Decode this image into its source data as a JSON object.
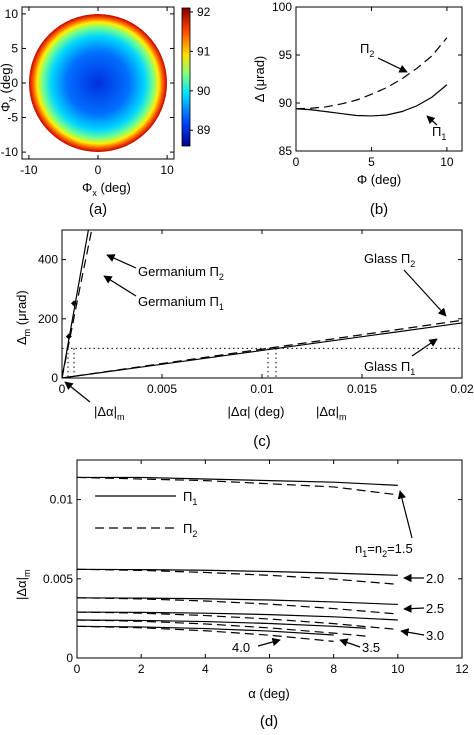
{
  "chart_data": [
    {
      "id": "a",
      "type": "heatmap",
      "panel_label": "(a)",
      "xlabel": "Φ_x (deg)",
      "ylabel": "Φ_y (deg)",
      "xticks": [
        -10,
        0,
        10
      ],
      "yticks": [
        -10,
        -5,
        0,
        5,
        10
      ],
      "xlim": [
        -11,
        11
      ],
      "ylim": [
        -11,
        11
      ],
      "disk_radius": 10,
      "colorbar": {
        "min": 88.6,
        "max": 92.1,
        "ticks": [
          89,
          90,
          91,
          92
        ],
        "stops": [
          "#00008f",
          "#0040ff",
          "#00e0ff",
          "#80ff80",
          "#ffe000",
          "#ff4000",
          "#800000"
        ]
      },
      "center_value": 89.4,
      "edge_value": 92.0
    },
    {
      "id": "b",
      "type": "line",
      "panel_label": "(b)",
      "xlabel": "Φ (deg)",
      "ylabel": "Δ (μrad)",
      "xlim": [
        0,
        11
      ],
      "ylim": [
        85,
        100
      ],
      "xticks": [
        0,
        5,
        10
      ],
      "yticks": [
        85,
        90,
        95,
        100
      ],
      "series": [
        {
          "name": "Π_2",
          "style": "dashed",
          "x": [
            0,
            1,
            2,
            3,
            4,
            5,
            6,
            7,
            8,
            9,
            10
          ],
          "y": [
            89.4,
            89.45,
            89.6,
            89.9,
            90.3,
            90.9,
            91.6,
            92.5,
            93.6,
            94.9,
            96.8
          ]
        },
        {
          "name": "Π_1",
          "style": "solid",
          "x": [
            0,
            1,
            2,
            3,
            4,
            5,
            6,
            7,
            8,
            9,
            10
          ],
          "y": [
            89.4,
            89.3,
            89.1,
            88.9,
            88.7,
            88.65,
            88.75,
            89.1,
            89.7,
            90.6,
            91.9
          ]
        }
      ]
    },
    {
      "id": "c",
      "type": "line",
      "panel_label": "(c)",
      "xlabel": "|Δα| (deg)",
      "ylabel": "Δ_m (μrad)",
      "xlim": [
        0,
        0.02
      ],
      "ylim": [
        0,
        500
      ],
      "xticks": [
        0,
        0.005,
        0.01,
        0.015,
        0.02
      ],
      "yticks": [
        0,
        200,
        400
      ],
      "threshold": 100,
      "series": [
        {
          "name": "Germanium Π_2",
          "style": "dashed",
          "x": [
            0,
            0.0005,
            0.001,
            0.0015
          ],
          "y": [
            0,
            170,
            340,
            505
          ]
        },
        {
          "name": "Germanium Π_1",
          "style": "solid",
          "x": [
            0,
            0.0005,
            0.001,
            0.0014
          ],
          "y": [
            0,
            190,
            380,
            530
          ]
        },
        {
          "name": "Glass Π_2",
          "style": "dashed",
          "x": [
            0,
            0.02
          ],
          "y": [
            0,
            195
          ]
        },
        {
          "name": "Glass Π_1",
          "style": "solid",
          "x": [
            0,
            0.02
          ],
          "y": [
            0,
            186
          ]
        }
      ],
      "markers": [
        {
          "x": 0.00034,
          "y": 140
        },
        {
          "x": 0.0006,
          "y": 252
        }
      ],
      "drop_lines_x": [
        0.0003,
        0.0006,
        0.0103,
        0.0107
      ]
    },
    {
      "id": "d",
      "type": "line",
      "panel_label": "(d)",
      "xlabel": "α (deg)",
      "ylabel": "|Δα|_m",
      "xlim": [
        0,
        12
      ],
      "ylim": [
        0,
        0.0125
      ],
      "xticks": [
        0,
        2,
        4,
        6,
        8,
        10,
        12
      ],
      "yticks": [
        0,
        0.005,
        0.01
      ],
      "legend": {
        "placement": "left",
        "entries": [
          {
            "label": "Π_1",
            "style": "solid"
          },
          {
            "label": "Π_2",
            "style": "dashed"
          }
        ]
      },
      "series": [
        {
          "name": "n1=n2=1.5 Π_1",
          "style": "solid",
          "x": [
            0,
            2,
            4,
            6,
            8,
            10
          ],
          "y": [
            0.0114,
            0.0114,
            0.0113,
            0.0112,
            0.0111,
            0.0109
          ]
        },
        {
          "name": "n1=n2=1.5 Π_2",
          "style": "dashed",
          "x": [
            0,
            2,
            4,
            6,
            8,
            10
          ],
          "y": [
            0.0114,
            0.0113,
            0.0112,
            0.011,
            0.0108,
            0.0103
          ]
        },
        {
          "name": "2.0 Π_1",
          "style": "solid",
          "x": [
            0,
            2,
            4,
            6,
            8,
            10
          ],
          "y": [
            0.0056,
            0.00558,
            0.00554,
            0.00546,
            0.00536,
            0.00522
          ]
        },
        {
          "name": "2.0 Π_2",
          "style": "dashed",
          "x": [
            0,
            2,
            4,
            6,
            8,
            10
          ],
          "y": [
            0.0056,
            0.00553,
            0.0054,
            0.00522,
            0.00498,
            0.00465
          ]
        },
        {
          "name": "2.5 Π_1",
          "style": "solid",
          "x": [
            0,
            2,
            4,
            6,
            8,
            10
          ],
          "y": [
            0.0038,
            0.00378,
            0.00374,
            0.00366,
            0.00354,
            0.00338
          ]
        },
        {
          "name": "2.5 Π_2",
          "style": "dashed",
          "x": [
            0,
            2,
            4,
            6,
            8,
            10
          ],
          "y": [
            0.0038,
            0.00373,
            0.0036,
            0.0034,
            0.00312,
            0.00278
          ]
        },
        {
          "name": "3.0 Π_1",
          "style": "solid",
          "x": [
            0,
            2,
            4,
            6,
            8,
            10
          ],
          "y": [
            0.0029,
            0.00288,
            0.00283,
            0.00274,
            0.0026,
            0.0024
          ]
        },
        {
          "name": "3.0 Π_2",
          "style": "dashed",
          "x": [
            0,
            2,
            4,
            6,
            8,
            10
          ],
          "y": [
            0.0029,
            0.00283,
            0.00268,
            0.00246,
            0.00217,
            0.0018
          ]
        },
        {
          "name": "3.5 Π_1",
          "style": "solid",
          "x": [
            0,
            2,
            4,
            6,
            8,
            9
          ],
          "y": [
            0.0024,
            0.00237,
            0.0023,
            0.00218,
            0.002,
            0.00188
          ]
        },
        {
          "name": "3.5 Π_2",
          "style": "dashed",
          "x": [
            0,
            2,
            4,
            6,
            8,
            9
          ],
          "y": [
            0.0024,
            0.00232,
            0.00215,
            0.0019,
            0.00157,
            0.00138
          ]
        },
        {
          "name": "4.0 Π_1",
          "style": "solid",
          "x": [
            0,
            2,
            4,
            6,
            8
          ],
          "y": [
            0.002,
            0.00196,
            0.00186,
            0.0017,
            0.00145
          ]
        },
        {
          "name": "4.0 Π_2",
          "style": "dashed",
          "x": [
            0,
            2,
            4,
            6,
            8
          ],
          "y": [
            0.002,
            0.00191,
            0.00172,
            0.00144,
            0.00105
          ]
        }
      ]
    }
  ],
  "annotations": {
    "b_pi2": "Π",
    "b_pi2_sub": "2",
    "b_pi1": "Π",
    "b_pi1_sub": "1",
    "c_ge_pi2": "Germanium Π",
    "c_ge_pi2_sub": "2",
    "c_ge_pi1": "Germanium Π",
    "c_ge_pi1_sub": "1",
    "c_glass_pi2": "Glass Π",
    "c_glass_pi2_sub": "2",
    "c_glass_pi1": "Glass Π",
    "c_glass_pi1_sub": "1",
    "c_dalpha_m_left": "|Δα|",
    "c_dalpha_m_left_sub": "m",
    "c_dalpha_m_right": "|Δα|",
    "c_dalpha_m_right_sub": "m",
    "d_legend_pi1": "Π",
    "d_legend_pi1_sub": "1",
    "d_legend_pi2": "Π",
    "d_legend_pi2_sub": "2",
    "d_n15": "n",
    "d_n15_sub1": "1",
    "d_n15_mid": "=n",
    "d_n15_sub2": "2",
    "d_n15_end": "=1.5",
    "d_20": "2.0",
    "d_25": "2.5",
    "d_30": "3.0",
    "d_35": "3.5",
    "d_40": "4.0"
  },
  "labels": {
    "a_x": "Φ",
    "a_x_sub": "x",
    "a_x_unit": " (deg)",
    "a_y": "Φ",
    "a_y_sub": "y",
    "a_y_unit": " (deg)",
    "b_x": "Φ (deg)",
    "b_y": "Δ (μrad)",
    "c_x": "|Δα| (deg)",
    "c_y": "Δ",
    "c_y_sub": "m",
    "c_y_unit": " (μrad)",
    "d_x": "α (deg)",
    "d_y": "|Δα|",
    "d_y_sub": "m",
    "pa": "(a)",
    "pb": "(b)",
    "pc": "(c)",
    "pd": "(d)"
  }
}
